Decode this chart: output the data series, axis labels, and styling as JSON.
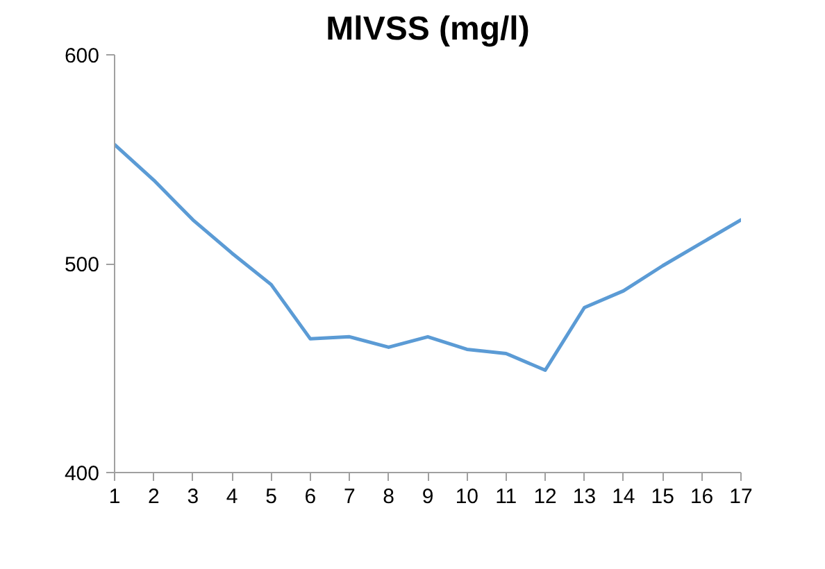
{
  "chart_data": {
    "type": "line",
    "title": "MlVSS (mg/l)",
    "x": [
      1,
      2,
      3,
      4,
      5,
      6,
      7,
      8,
      9,
      10,
      11,
      12,
      13,
      14,
      15,
      16,
      17
    ],
    "series": [
      {
        "color": "#5b9bd5",
        "values": [
          557,
          540,
          521,
          505,
          490,
          464,
          465,
          460,
          465,
          459,
          457,
          449,
          479,
          487,
          499,
          510,
          521
        ]
      }
    ],
    "xlim": [
      1,
      17
    ],
    "xticks": [
      1,
      2,
      3,
      4,
      5,
      6,
      7,
      8,
      9,
      10,
      11,
      12,
      13,
      14,
      15,
      16,
      17
    ],
    "ylim": [
      400,
      600
    ],
    "yticks": [
      400,
      500,
      600
    ],
    "grid": false,
    "marker": "none",
    "line_style": "solid"
  }
}
